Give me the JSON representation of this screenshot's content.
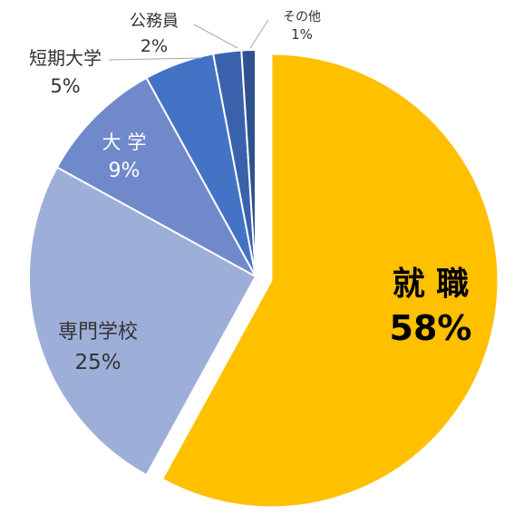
{
  "chart_data": {
    "type": "pie",
    "slices": [
      {
        "name": "就 職",
        "value": 58,
        "label": "58%",
        "color": "#FFC000"
      },
      {
        "name": "専門学校",
        "value": 25,
        "label": "25%",
        "color": "#9DAED9"
      },
      {
        "name": "大 学",
        "value": 9,
        "label": "9%",
        "color": "#7089CB"
      },
      {
        "name": "短期大学",
        "value": 5,
        "label": "5%",
        "color": "#4472C4"
      },
      {
        "name": "公務員",
        "value": 2,
        "label": "2%",
        "color": "#3A62AC"
      },
      {
        "name": "その他",
        "value": 1,
        "label": "1%",
        "color": "#2F528F"
      }
    ],
    "exploded_slice": "就 職",
    "grid": false,
    "legend": "none"
  }
}
